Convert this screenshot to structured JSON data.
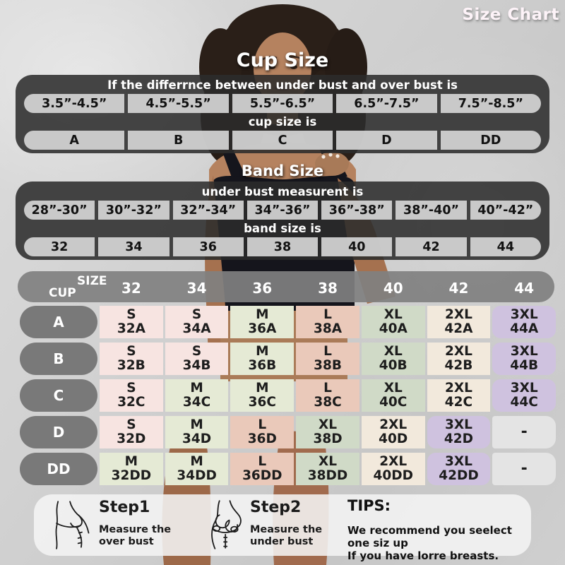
{
  "page": {
    "badge": "Size Chart"
  },
  "chart_data": [
    {
      "type": "table",
      "title": "Cup Size",
      "condition_label": "If the differrnce between under bust and over bust is",
      "columns": [
        "3.5”-4.5”",
        "4.5”-5.5”",
        "5.5”-6.5”",
        "6.5”-7.5”",
        "7.5”-8.5”"
      ],
      "result_label": "cup size is",
      "values": [
        "A",
        "B",
        "C",
        "D",
        "DD"
      ]
    },
    {
      "type": "table",
      "title": "Band Size",
      "condition_label": "under bust measurent is",
      "columns": [
        "28”-30”",
        "30”-32”",
        "32”-34”",
        "34”-36”",
        "36”-38”",
        "38”-40”",
        "40”-42”"
      ],
      "result_label": "band size is",
      "values": [
        "32",
        "34",
        "36",
        "38",
        "40",
        "42",
        "44"
      ]
    },
    {
      "type": "table",
      "corner_top": "SIZE",
      "corner_bottom": "CUP",
      "columns": [
        "32",
        "34",
        "36",
        "38",
        "40",
        "42",
        "44"
      ],
      "rows": [
        {
          "cup": "A",
          "cells": [
            {
              "size": "S",
              "code": "32A"
            },
            {
              "size": "S",
              "code": "34A"
            },
            {
              "size": "M",
              "code": "36A"
            },
            {
              "size": "L",
              "code": "38A"
            },
            {
              "size": "XL",
              "code": "40A"
            },
            {
              "size": "2XL",
              "code": "42A"
            },
            {
              "size": "3XL",
              "code": "44A"
            }
          ]
        },
        {
          "cup": "B",
          "cells": [
            {
              "size": "S",
              "code": "32B"
            },
            {
              "size": "S",
              "code": "34B"
            },
            {
              "size": "M",
              "code": "36B"
            },
            {
              "size": "L",
              "code": "38B"
            },
            {
              "size": "XL",
              "code": "40B"
            },
            {
              "size": "2XL",
              "code": "42B"
            },
            {
              "size": "3XL",
              "code": "44B"
            }
          ]
        },
        {
          "cup": "C",
          "cells": [
            {
              "size": "S",
              "code": "32C"
            },
            {
              "size": "M",
              "code": "34C"
            },
            {
              "size": "M",
              "code": "36C"
            },
            {
              "size": "L",
              "code": "38C"
            },
            {
              "size": "XL",
              "code": "40C"
            },
            {
              "size": "2XL",
              "code": "42C"
            },
            {
              "size": "3XL",
              "code": "44C"
            }
          ]
        },
        {
          "cup": "D",
          "cells": [
            {
              "size": "S",
              "code": "32D"
            },
            {
              "size": "M",
              "code": "34D"
            },
            {
              "size": "L",
              "code": "36D"
            },
            {
              "size": "XL",
              "code": "38D"
            },
            {
              "size": "2XL",
              "code": "40D"
            },
            {
              "size": "3XL",
              "code": "42D"
            },
            {
              "size": "-",
              "code": ""
            }
          ]
        },
        {
          "cup": "DD",
          "cells": [
            {
              "size": "M",
              "code": "32DD"
            },
            {
              "size": "M",
              "code": "34DD"
            },
            {
              "size": "L",
              "code": "36DD"
            },
            {
              "size": "XL",
              "code": "38DD"
            },
            {
              "size": "2XL",
              "code": "40DD"
            },
            {
              "size": "3XL",
              "code": "42DD"
            },
            {
              "size": "-",
              "code": ""
            }
          ]
        }
      ]
    }
  ],
  "cell_colors": {
    "S": "#f7e4e1",
    "M": "#e5ead5",
    "L": "#eac9ba",
    "XL": "#d0dac7",
    "2XL": "#f2e9dc",
    "3XL": "#cfc2df",
    "-": "#e4e4e4"
  },
  "steps": [
    {
      "label": "Step1",
      "line1": "Measure the",
      "line2": "over bust"
    },
    {
      "label": "Step2",
      "line1": "Measure the",
      "line2": "under bust"
    }
  ],
  "tips": {
    "label": "TIPS:",
    "line1": "We recommend you seelect one siz up",
    "line2": "If you have lorre breasts."
  }
}
